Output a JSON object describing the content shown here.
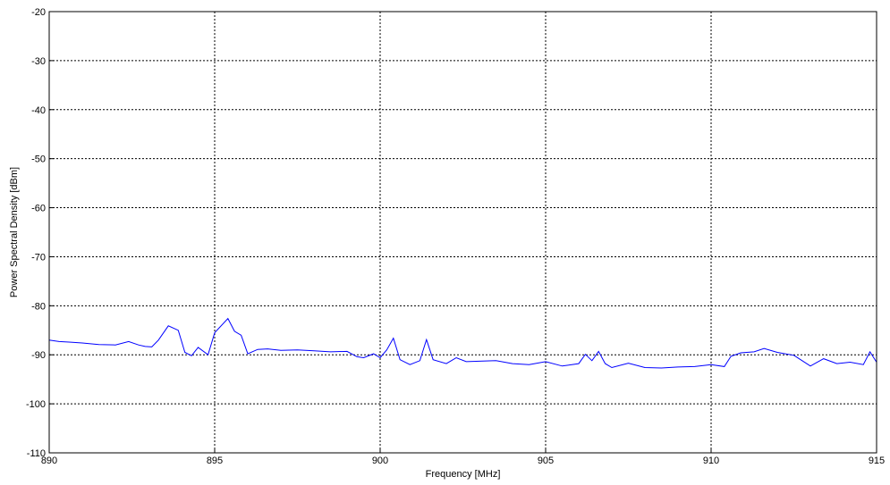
{
  "chart_data": {
    "type": "line",
    "title": "",
    "xlabel": "Frequency [MHz]",
    "ylabel": "Power Spectral Density [dBm]",
    "xlim": [
      890,
      915
    ],
    "ylim": [
      -110,
      -20
    ],
    "xticks": [
      890,
      895,
      900,
      905,
      910,
      915
    ],
    "yticks": [
      -20,
      -30,
      -40,
      -50,
      -60,
      -70,
      -80,
      -90,
      -100,
      -110
    ],
    "grid": true,
    "grid_style": "dotted",
    "line_color": "#0000ff",
    "series": [
      {
        "x": [
          890.0,
          890.3,
          890.6,
          891.0,
          891.5,
          892.0,
          892.4,
          892.7,
          892.9,
          893.1,
          893.3,
          893.6,
          893.9,
          894.1,
          894.3,
          894.5,
          894.8,
          895.0,
          895.4,
          895.6,
          895.8,
          896.0,
          896.3,
          896.6,
          897.0,
          897.5,
          898.0,
          898.5,
          899.0,
          899.3,
          899.5,
          899.8,
          900.0,
          900.2,
          900.4,
          900.6,
          900.9,
          901.2,
          901.4,
          901.6,
          902.0,
          902.3,
          902.6,
          903.0,
          903.5,
          904.0,
          904.5,
          905.0,
          905.5,
          906.0,
          906.2,
          906.4,
          906.6,
          906.8,
          907.0,
          907.5,
          908.0,
          908.5,
          909.0,
          909.5,
          910.0,
          910.4,
          910.6,
          910.9,
          911.3,
          911.6,
          912.0,
          912.5,
          913.0,
          913.4,
          913.8,
          914.2,
          914.6,
          914.8,
          915.0
        ],
        "values": [
          -87.0,
          -87.3,
          -87.4,
          -87.6,
          -87.9,
          -88.0,
          -87.3,
          -88.0,
          -88.3,
          -88.4,
          -87.0,
          -84.1,
          -85.0,
          -89.5,
          -90.2,
          -88.5,
          -90.0,
          -85.5,
          -82.6,
          -85.2,
          -86.0,
          -89.8,
          -88.9,
          -88.8,
          -89.1,
          -89.0,
          -89.2,
          -89.4,
          -89.3,
          -90.4,
          -90.6,
          -89.8,
          -90.6,
          -89.0,
          -86.6,
          -91.0,
          -92.0,
          -91.2,
          -86.9,
          -91.0,
          -91.8,
          -90.6,
          -91.4,
          -91.3,
          -91.2,
          -91.8,
          -92.0,
          -91.4,
          -92.3,
          -91.8,
          -89.9,
          -91.2,
          -89.3,
          -91.8,
          -92.6,
          -91.7,
          -92.6,
          -92.7,
          -92.5,
          -92.4,
          -92.0,
          -92.4,
          -90.3,
          -89.6,
          -89.4,
          -88.7,
          -89.5,
          -90.1,
          -92.3,
          -90.8,
          -91.8,
          -91.5,
          -92.0,
          -89.4,
          -91.5
        ]
      }
    ]
  }
}
